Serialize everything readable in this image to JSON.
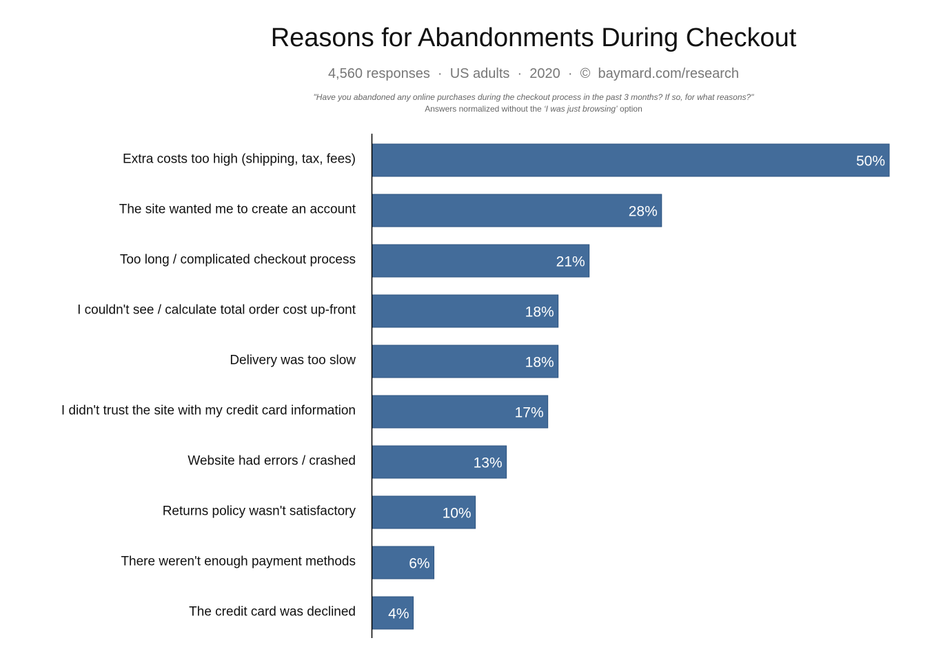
{
  "chart_data": {
    "type": "bar",
    "orientation": "horizontal",
    "title": "Reasons for Abandonments During Checkout",
    "subtitle": "4,560 responses  ·  US adults  ·  2020  ·  ©  baymard.com/research",
    "question": "\"Have you abandoned any online purchases during the checkout process in the past 3 months? If so, for what reasons?\"",
    "note": {
      "before": "Answers normalized without the ",
      "italic": "‘I was just browsing’",
      "after": " option"
    },
    "categories": [
      "Extra costs too high (shipping, tax, fees)",
      "The site wanted me to create an account",
      "Too long / complicated checkout process",
      "I couldn't see / calculate total order cost up-front",
      "Delivery was too slow",
      "I didn't trust the site with my credit card information",
      "Website had errors / crashed",
      "Returns policy wasn't satisfactory",
      "There weren't enough payment methods",
      "The credit card was declined"
    ],
    "values": [
      50,
      28,
      21,
      18,
      18,
      17,
      13,
      10,
      6,
      4
    ],
    "value_labels": [
      "50%",
      "28%",
      "21%",
      "18%",
      "18%",
      "17%",
      "13%",
      "10%",
      "6%",
      "4%"
    ],
    "unit": "%",
    "xlim": [
      0,
      50
    ],
    "grid": false,
    "legend": "none",
    "bar_color": "#436c9a",
    "bar_border_color": "#2f5580",
    "label_color": "#ffffff",
    "axis_color": "#000000"
  }
}
